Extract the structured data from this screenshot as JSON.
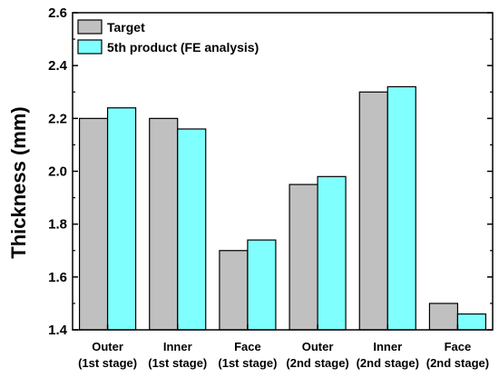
{
  "chart_data": {
    "type": "bar",
    "categories": [
      [
        "Outer",
        "(1st stage)"
      ],
      [
        "Inner",
        "(1st stage)"
      ],
      [
        "Face",
        "(1st stage)"
      ],
      [
        "Outer",
        "(2nd stage)"
      ],
      [
        "Inner",
        "(2nd stage)"
      ],
      [
        "Face",
        "(2nd stage)"
      ]
    ],
    "series": [
      {
        "name": "Target",
        "color": "#c0c0c0",
        "values": [
          2.2,
          2.2,
          1.7,
          1.95,
          2.3,
          1.5
        ]
      },
      {
        "name": "5th product (FE analysis)",
        "color": "#80ffff",
        "values": [
          2.24,
          2.16,
          1.74,
          1.98,
          2.32,
          1.46
        ]
      }
    ],
    "title": "",
    "xlabel": "",
    "ylabel": "Thickness (mm)",
    "ylim": [
      1.4,
      2.6
    ],
    "yticks": [
      "1.4",
      "1.6",
      "1.8",
      "2.0",
      "2.2",
      "2.4",
      "2.6"
    ],
    "grid": false,
    "legend_position": "top-left"
  }
}
